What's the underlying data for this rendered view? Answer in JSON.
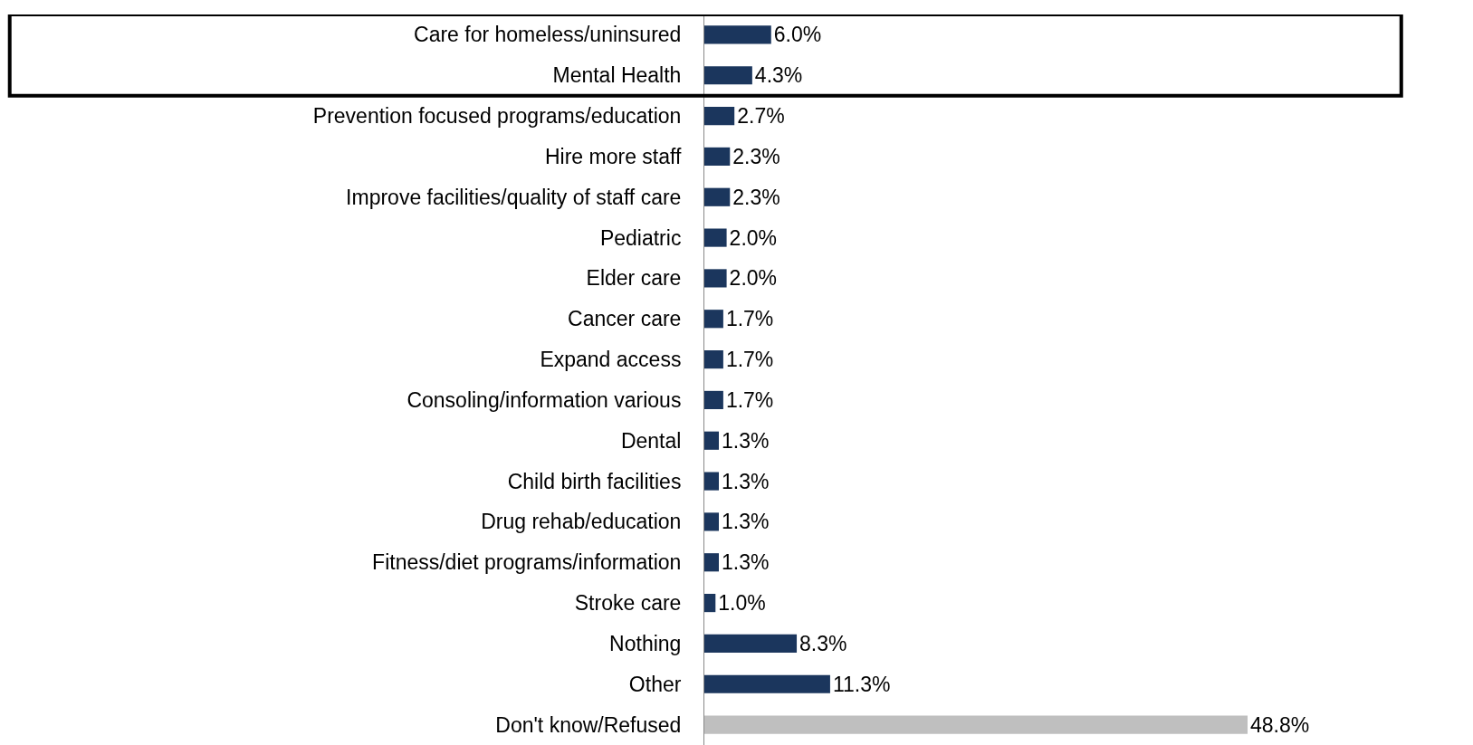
{
  "chart_data": {
    "type": "bar",
    "orientation": "horizontal",
    "tick_labels": "y",
    "categories": [
      "Care for homeless/uninsured",
      "Mental Health",
      "Prevention focused programs/education",
      "Hire more staff",
      "Improve facilities/quality of staff care",
      "Pediatric",
      "Elder care",
      "Cancer care",
      "Expand access",
      "Consoling/information various",
      "Dental",
      "Child birth facilities",
      "Drug rehab/education",
      "Fitness/diet programs/information",
      "Stroke care",
      "Nothing",
      "Other",
      "Don't know/Refused"
    ],
    "values": [
      6.0,
      4.3,
      2.7,
      2.3,
      2.3,
      2.0,
      2.0,
      1.7,
      1.7,
      1.7,
      1.3,
      1.3,
      1.3,
      1.3,
      1.0,
      8.3,
      11.3,
      48.8
    ],
    "value_labels": [
      "6.0%",
      "4.3%",
      "2.7%",
      "2.3%",
      "2.3%",
      "2.0%",
      "2.0%",
      "1.7%",
      "1.7%",
      "1.7%",
      "1.3%",
      "1.3%",
      "1.3%",
      "1.3%",
      "1.0%",
      "8.3%",
      "11.3%",
      "48.8%"
    ],
    "colors": [
      "#1b365d",
      "#1b365d",
      "#1b365d",
      "#1b365d",
      "#1b365d",
      "#1b365d",
      "#1b365d",
      "#1b365d",
      "#1b365d",
      "#1b365d",
      "#1b365d",
      "#1b365d",
      "#1b365d",
      "#1b365d",
      "#1b365d",
      "#1b365d",
      "#1b365d",
      "#bfbfbf"
    ]
  }
}
